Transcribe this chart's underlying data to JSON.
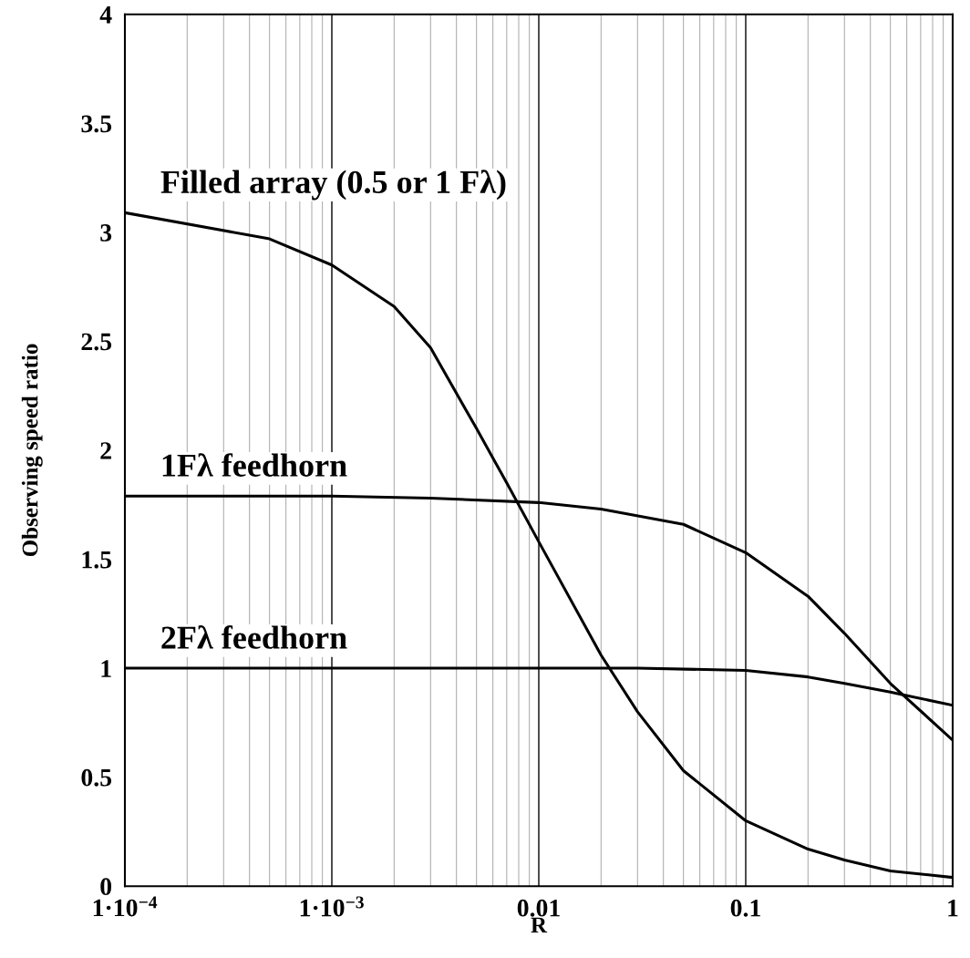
{
  "chart_data": {
    "type": "line",
    "xlabel": "R",
    "ylabel": "Observing speed ratio",
    "log": "x",
    "grid": "x",
    "legend": false,
    "marker": "none",
    "line_style": "solid",
    "xlim": [
      0.0001,
      1
    ],
    "xticks": [
      {
        "value": 0.0001,
        "label": "1·10$^{−4}$"
      },
      {
        "value": 0.001,
        "label": "1·10$^{−3}$"
      },
      0.01,
      0.1,
      1
    ],
    "ylim": [
      0,
      4
    ],
    "yticks": [
      0,
      0.5,
      1,
      1.5,
      2,
      2.5,
      3,
      3.5,
      4
    ],
    "series": [
      {
        "name": "Filled array (0.5 or 1 Fλ)",
        "color": "#000000",
        "x": [
          0.0001,
          0.0005,
          0.001,
          0.002,
          0.003,
          0.005,
          0.007,
          0.01,
          0.02,
          0.03,
          0.05,
          0.1,
          0.2,
          0.3,
          0.5,
          1
        ],
        "values": [
          3.09,
          2.97,
          2.85,
          2.66,
          2.47,
          2.1,
          1.85,
          1.58,
          1.06,
          0.8,
          0.53,
          0.3,
          0.17,
          0.12,
          0.07,
          0.04
        ]
      },
      {
        "name": "1Fλ feedhorn",
        "color": "#000000",
        "x": [
          0.0001,
          0.001,
          0.003,
          0.01,
          0.02,
          0.05,
          0.1,
          0.2,
          0.3,
          0.5,
          1
        ],
        "values": [
          1.79,
          1.79,
          1.78,
          1.76,
          1.73,
          1.66,
          1.53,
          1.33,
          1.16,
          0.93,
          0.67
        ]
      },
      {
        "name": "2Fλ feedhorn",
        "color": "#000000",
        "x": [
          0.0001,
          0.001,
          0.01,
          0.03,
          0.1,
          0.2,
          0.3,
          0.5,
          1
        ],
        "values": [
          1.0,
          1.0,
          1.0,
          1.0,
          0.99,
          0.96,
          0.93,
          0.89,
          0.83
        ]
      }
    ]
  }
}
